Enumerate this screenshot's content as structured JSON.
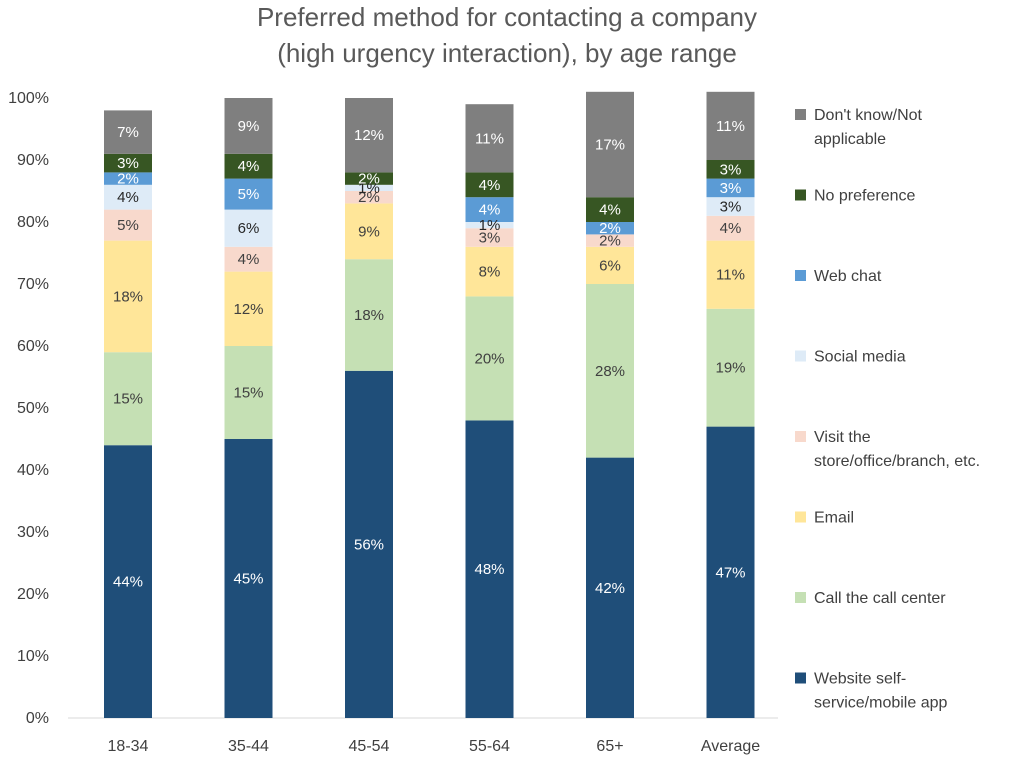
{
  "chart_data": {
    "type": "bar",
    "stacked": true,
    "title": "Preferred method for contacting a company (high urgency interaction), by age range",
    "title_lines": [
      "Preferred method for contacting a company",
      "(high urgency interaction), by age range"
    ],
    "categories": [
      "18-34",
      "35-44",
      "45-54",
      "55-64",
      "65+",
      "Average"
    ],
    "ylim": [
      0,
      1
    ],
    "yticks": [
      "0%",
      "10%",
      "20%",
      "30%",
      "40%",
      "50%",
      "60%",
      "70%",
      "80%",
      "90%",
      "100%"
    ],
    "series": [
      {
        "name": "Website self-service/mobile app",
        "legend_lines": [
          "Website self-",
          "service/mobile app"
        ],
        "color": "#1f4e79",
        "label_color": "#ffffff",
        "values": [
          0.44,
          0.45,
          0.56,
          0.48,
          0.42,
          0.47
        ],
        "labels": [
          "44%",
          "45%",
          "56%",
          "48%",
          "42%",
          "47%"
        ]
      },
      {
        "name": "Call the call center",
        "legend_lines": [
          "Call the call center"
        ],
        "color": "#c5e0b4",
        "label_color": "#404040",
        "values": [
          0.15,
          0.15,
          0.18,
          0.2,
          0.28,
          0.19
        ],
        "labels": [
          "15%",
          "15%",
          "18%",
          "20%",
          "28%",
          "19%"
        ]
      },
      {
        "name": "Email",
        "legend_lines": [
          "Email"
        ],
        "color": "#ffe699",
        "label_color": "#404040",
        "values": [
          0.18,
          0.12,
          0.09,
          0.08,
          0.06,
          0.11
        ],
        "labels": [
          "18%",
          "12%",
          "9%",
          "8%",
          "6%",
          "11%"
        ]
      },
      {
        "name": "Visit the store/office/branch, etc.",
        "legend_lines": [
          "Visit the",
          "store/office/branch, etc."
        ],
        "color": "#f8d9cc",
        "label_color": "#404040",
        "values": [
          0.05,
          0.04,
          0.02,
          0.03,
          0.02,
          0.04
        ],
        "labels": [
          "5%",
          "4%",
          "2%",
          "3%",
          "2%",
          "4%"
        ]
      },
      {
        "name": "Social media",
        "legend_lines": [
          "Social media"
        ],
        "color": "#deebf7",
        "label_color": "#262626",
        "values": [
          0.04,
          0.06,
          0.01,
          0.01,
          0.0,
          0.03
        ],
        "labels": [
          "4%",
          "6%",
          "1%",
          "1%",
          "",
          "3%"
        ]
      },
      {
        "name": "Web chat",
        "legend_lines": [
          "Web chat"
        ],
        "color": "#5b9bd5",
        "label_color": "#ffffff",
        "values": [
          0.02,
          0.05,
          0.0,
          0.04,
          0.02,
          0.03
        ],
        "labels": [
          "2%",
          "5%",
          "",
          "4%",
          "2%",
          "3%"
        ]
      },
      {
        "name": "No preference",
        "legend_lines": [
          "No preference"
        ],
        "color": "#375623",
        "label_color": "#ffffff",
        "values": [
          0.03,
          0.04,
          0.02,
          0.04,
          0.04,
          0.03
        ],
        "labels": [
          "3%",
          "4%",
          "2%",
          "4%",
          "4%",
          "3%"
        ]
      },
      {
        "name": "Don't know/Not applicable",
        "legend_lines": [
          "Don't know/Not",
          "applicable"
        ],
        "color": "#7f7f7f",
        "label_color": "#ffffff",
        "values": [
          0.07,
          0.09,
          0.12,
          0.11,
          0.17,
          0.11
        ],
        "labels": [
          "7%",
          "9%",
          "12%",
          "11%",
          "17%",
          "11%"
        ]
      }
    ],
    "legend_position": "right",
    "grid": false
  }
}
